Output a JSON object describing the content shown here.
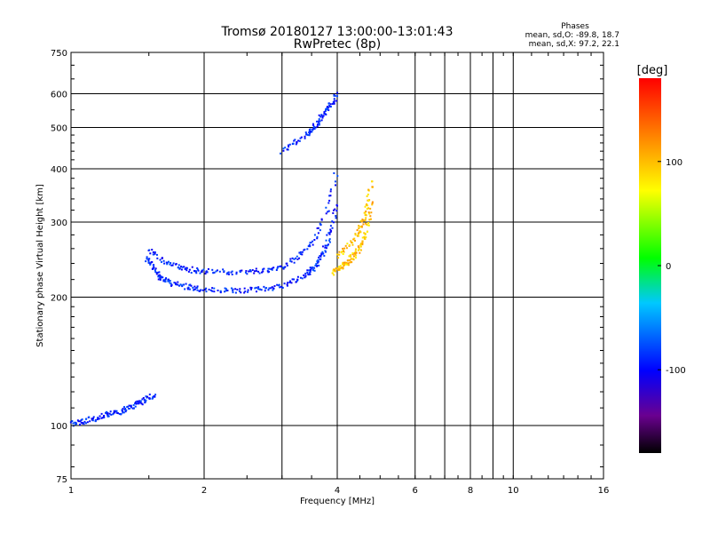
{
  "chart_data": {
    "type": "scatter",
    "title": "Tromsø 20180127 13:00:00-13:01:43",
    "subtitle": "RwPretec (8p)",
    "xlabel": "Frequency [MHz]",
    "ylabel": "Stationary phase Virtual Height [km]",
    "x_scale": "log",
    "y_scale": "log",
    "xlim": [
      1,
      16
    ],
    "ylim": [
      75,
      750
    ],
    "x_ticks": [
      1,
      2,
      4,
      6,
      8,
      10,
      16
    ],
    "x_tick_labels": [
      "1",
      "2",
      "4",
      "6",
      "8",
      "10",
      "16"
    ],
    "x_minor_gridlines": [
      3,
      7,
      9
    ],
    "y_ticks": [
      75,
      100,
      200,
      300,
      400,
      500,
      600,
      750
    ],
    "y_tick_labels": [
      "75",
      "100",
      "200",
      "300",
      "400",
      "500",
      "600",
      "750"
    ],
    "grid": true,
    "legend": {
      "title": "Phases",
      "line1": "mean, sd,O: -89.8, 18.7",
      "line2": "mean, sd,X:  97.2, 22.1",
      "placement": "top-right"
    },
    "colorbar": {
      "label": "[deg]",
      "range": [
        -180,
        180
      ],
      "ticks": [
        100,
        0,
        -100
      ],
      "tick_labels": [
        "100",
        "0",
        "-100"
      ],
      "colormap": "rainbow (black-purple-blue-cyan-green-yellow-orange-red)"
    },
    "series": [
      {
        "name": "O",
        "phase_mean": -89.8,
        "phase_sd": 18.7,
        "traces": [
          {
            "x": [
              1.48,
              1.52,
              1.56,
              1.6,
              1.65,
              1.7,
              1.8,
              1.9,
              2.0,
              2.2,
              2.4,
              2.6,
              2.8,
              3.0,
              3.2,
              3.4,
              3.5,
              3.6,
              3.7,
              3.8,
              3.9,
              4.0
            ],
            "y": [
              247,
              238,
              228,
              222,
              218,
              215,
              212,
              210,
              208,
              207,
              207,
              208,
              210,
              213,
              218,
              226,
              232,
              240,
              252,
              268,
              292,
              340
            ]
          },
          {
            "x": [
              1.5,
              1.6,
              1.7,
              1.8,
              1.9,
              2.0,
              2.2,
              2.4,
              2.6,
              2.8,
              3.0,
              3.2,
              3.4,
              3.6,
              3.8,
              4.0
            ],
            "y": [
              258,
              245,
              238,
              234,
              231,
              230,
              229,
              229,
              230,
              232,
              236,
              244,
              258,
              280,
              320,
              400
            ]
          },
          {
            "x": [
              3.0,
              3.2,
              3.4,
              3.5,
              3.6,
              3.7,
              3.8,
              3.9,
              4.0
            ],
            "y": [
              440,
              460,
              480,
              495,
              510,
              530,
              550,
              570,
              600
            ]
          },
          {
            "x": [
              1.0,
              1.05,
              1.1,
              1.15,
              1.2,
              1.25,
              1.3,
              1.35,
              1.4,
              1.45,
              1.5,
              1.55
            ],
            "y": [
              101,
              102,
              103,
              104,
              106,
              107,
              108,
              110,
              112,
              114,
              116,
              118
            ]
          }
        ]
      },
      {
        "name": "X",
        "phase_mean": 97.2,
        "phase_sd": 22.1,
        "traces": [
          {
            "x": [
              3.9,
              4.0,
              4.1,
              4.2,
              4.3,
              4.4,
              4.5,
              4.6,
              4.7,
              4.8
            ],
            "y": [
              228,
              232,
              236,
              240,
              246,
              252,
              262,
              275,
              300,
              340
            ]
          },
          {
            "x": [
              4.0,
              4.2,
              4.4,
              4.5,
              4.6,
              4.7,
              4.8
            ],
            "y": [
              250,
              262,
              276,
              290,
              310,
              340,
              380
            ]
          }
        ]
      }
    ]
  }
}
